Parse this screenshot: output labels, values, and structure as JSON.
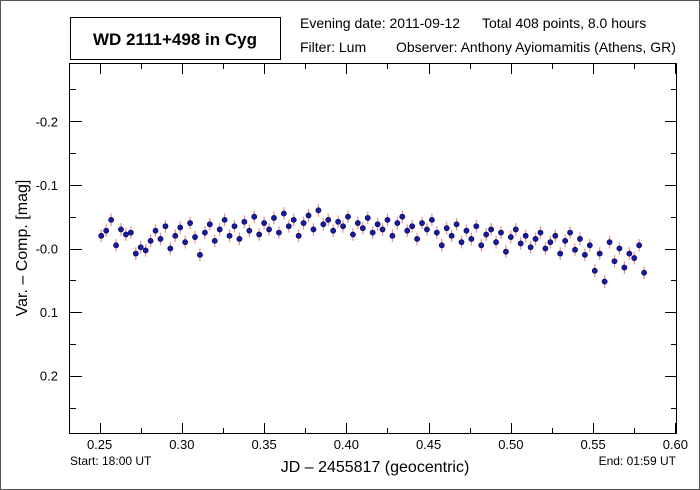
{
  "header": {
    "title": "WD 2111+498 in Cyg",
    "evening_date": "Evening date: 2011-09-12",
    "total": "Total 408 points, 8.0 hours",
    "filter": "Filter: Lum",
    "observer": "Observer: Anthony Ayiomamitis (Athens, GR)"
  },
  "footer": {
    "start": "Start: 18:00 UT",
    "end": "End: 01:59 UT"
  },
  "chart_data": {
    "type": "scatter",
    "title": "WD 2111+498 in Cyg",
    "xlabel": "JD – 2455817  (geocentric)",
    "ylabel": "Var. – Comp. [mag]",
    "xlim": [
      0.232,
      0.601
    ],
    "ylim": [
      -0.29,
      0.29
    ],
    "y_inverted": true,
    "grid": false,
    "xticks": [
      0.25,
      0.3,
      0.35,
      0.4,
      0.45,
      0.5,
      0.55,
      0.6
    ],
    "xtick_labels": [
      "0.25",
      "0.30",
      "0.35",
      "0.40",
      "0.45",
      "0.50",
      "0.55",
      "0.60"
    ],
    "yticks": [
      -0.2,
      -0.1,
      0.0,
      0.1,
      0.2
    ],
    "ytick_labels": [
      "-0.2",
      "-0.1",
      "-0.0",
      "0.1",
      "0.2"
    ],
    "marker_color": "#1a1aa0",
    "errorbar_color": "#e89090",
    "yerr": 0.01,
    "x": [
      0.251,
      0.254,
      0.257,
      0.26,
      0.263,
      0.266,
      0.269,
      0.272,
      0.275,
      0.278,
      0.281,
      0.284,
      0.287,
      0.29,
      0.293,
      0.296,
      0.299,
      0.302,
      0.305,
      0.308,
      0.311,
      0.314,
      0.317,
      0.32,
      0.323,
      0.326,
      0.329,
      0.332,
      0.335,
      0.338,
      0.341,
      0.344,
      0.347,
      0.35,
      0.353,
      0.356,
      0.359,
      0.362,
      0.365,
      0.368,
      0.371,
      0.374,
      0.377,
      0.38,
      0.383,
      0.386,
      0.389,
      0.392,
      0.395,
      0.398,
      0.401,
      0.404,
      0.407,
      0.41,
      0.413,
      0.416,
      0.419,
      0.422,
      0.425,
      0.428,
      0.431,
      0.434,
      0.437,
      0.44,
      0.443,
      0.446,
      0.449,
      0.452,
      0.455,
      0.458,
      0.461,
      0.464,
      0.467,
      0.47,
      0.473,
      0.476,
      0.479,
      0.482,
      0.485,
      0.488,
      0.491,
      0.494,
      0.497,
      0.5,
      0.503,
      0.506,
      0.509,
      0.512,
      0.515,
      0.518,
      0.521,
      0.524,
      0.527,
      0.53,
      0.533,
      0.536,
      0.539,
      0.542,
      0.545,
      0.548,
      0.551,
      0.554,
      0.557,
      0.56,
      0.563,
      0.566,
      0.569,
      0.572,
      0.575,
      0.578,
      0.581
    ],
    "y": [
      -0.02,
      -0.028,
      -0.045,
      -0.005,
      -0.03,
      -0.022,
      -0.025,
      0.008,
      -0.002,
      0.003,
      -0.012,
      -0.028,
      -0.015,
      -0.035,
      0.0,
      -0.02,
      -0.033,
      -0.01,
      -0.04,
      -0.018,
      0.01,
      -0.025,
      -0.038,
      -0.012,
      -0.03,
      -0.045,
      -0.02,
      -0.035,
      -0.015,
      -0.042,
      -0.028,
      -0.05,
      -0.022,
      -0.04,
      -0.03,
      -0.048,
      -0.025,
      -0.055,
      -0.035,
      -0.045,
      -0.02,
      -0.04,
      -0.052,
      -0.03,
      -0.06,
      -0.038,
      -0.045,
      -0.028,
      -0.042,
      -0.035,
      -0.05,
      -0.022,
      -0.04,
      -0.032,
      -0.048,
      -0.025,
      -0.038,
      -0.03,
      -0.045,
      -0.02,
      -0.04,
      -0.05,
      -0.028,
      -0.035,
      -0.015,
      -0.04,
      -0.03,
      -0.045,
      -0.025,
      -0.005,
      -0.032,
      -0.02,
      -0.038,
      -0.01,
      -0.028,
      -0.015,
      -0.035,
      -0.005,
      -0.022,
      -0.03,
      -0.01,
      -0.025,
      0.005,
      -0.018,
      -0.03,
      -0.008,
      -0.02,
      -0.002,
      -0.015,
      -0.025,
      0.0,
      -0.01,
      -0.02,
      0.008,
      -0.012,
      -0.025,
      0.002,
      -0.015,
      0.01,
      -0.005,
      0.035,
      0.008,
      0.052,
      -0.01,
      0.02,
      0.0,
      0.03,
      0.008,
      0.015,
      -0.005,
      0.038
    ]
  }
}
